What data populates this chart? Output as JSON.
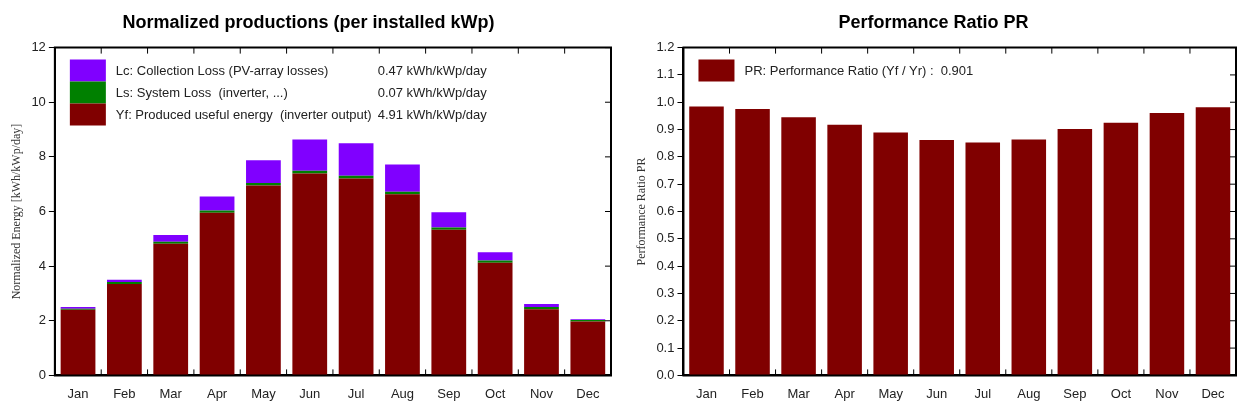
{
  "chart_data": [
    {
      "type": "bar",
      "title": "Normalized productions (per installed kWp)",
      "ylabel": "Normalized Energy [kWh/kWp/day]",
      "categories": [
        "Jan",
        "Feb",
        "Mar",
        "Apr",
        "May",
        "Jun",
        "Jul",
        "Aug",
        "Sep",
        "Oct",
        "Nov",
        "Dec"
      ],
      "stacked": true,
      "series": [
        {
          "name": "Yf: Produced useful energy  (inverter output)",
          "color": "#800000",
          "values": [
            2.4,
            3.35,
            4.82,
            5.95,
            6.95,
            7.39,
            7.21,
            6.63,
            5.33,
            4.12,
            2.42,
            1.97
          ]
        },
        {
          "name": "Ls: System Loss  (inverter, ...)",
          "color": "#008000",
          "values": [
            0.04,
            0.07,
            0.07,
            0.09,
            0.09,
            0.1,
            0.1,
            0.09,
            0.08,
            0.09,
            0.08,
            0.06
          ]
        },
        {
          "name": "Lc: Collection Loss (PV-array losses)",
          "color": "#8000ff",
          "values": [
            0.06,
            0.08,
            0.25,
            0.51,
            0.84,
            1.15,
            1.19,
            1.0,
            0.56,
            0.3,
            0.11,
            0.03
          ]
        }
      ],
      "annotations": [
        "4.91 kWh/kWp/day",
        "0.07 kWh/kWp/day",
        "0.47 kWh/kWp/day"
      ],
      "ylim": [
        0,
        12
      ],
      "yticks": [
        0,
        2,
        4,
        6,
        8,
        10,
        12
      ],
      "grid": false,
      "legend": "top left"
    },
    {
      "type": "bar",
      "title": "Performance Ratio PR",
      "ylabel": "Performance Ratio PR",
      "categories": [
        "Jan",
        "Feb",
        "Mar",
        "Apr",
        "May",
        "Jun",
        "Jul",
        "Aug",
        "Sep",
        "Oct",
        "Nov",
        "Dec"
      ],
      "series": [
        {
          "name": "PR: Performance Ratio (Yf / Yr) :  0.901",
          "color": "#800000",
          "values": [
            0.984,
            0.975,
            0.945,
            0.918,
            0.889,
            0.862,
            0.853,
            0.864,
            0.902,
            0.925,
            0.961,
            0.982
          ]
        }
      ],
      "ylim": [
        0,
        1.2
      ],
      "yticks": [
        {
          "value": 0,
          "label": "0.0"
        },
        {
          "value": 0.1,
          "label": "0.1"
        },
        {
          "value": 0.2,
          "label": "0.2"
        },
        {
          "value": 0.3,
          "label": "0.3"
        },
        {
          "value": 0.4,
          "label": "0.4"
        },
        {
          "value": 0.5,
          "label": "0.5"
        },
        {
          "value": 0.6,
          "label": "0.6"
        },
        {
          "value": 0.7,
          "label": "0.7"
        },
        {
          "value": 0.8,
          "label": "0.8"
        },
        {
          "value": 0.9,
          "label": "0.9"
        },
        {
          "value": 1.0,
          "label": "1.0"
        },
        {
          "value": 1.1,
          "label": "1.1"
        },
        {
          "value": 1.2,
          "label": "1.2"
        }
      ],
      "grid": false,
      "legend": "top left"
    }
  ]
}
